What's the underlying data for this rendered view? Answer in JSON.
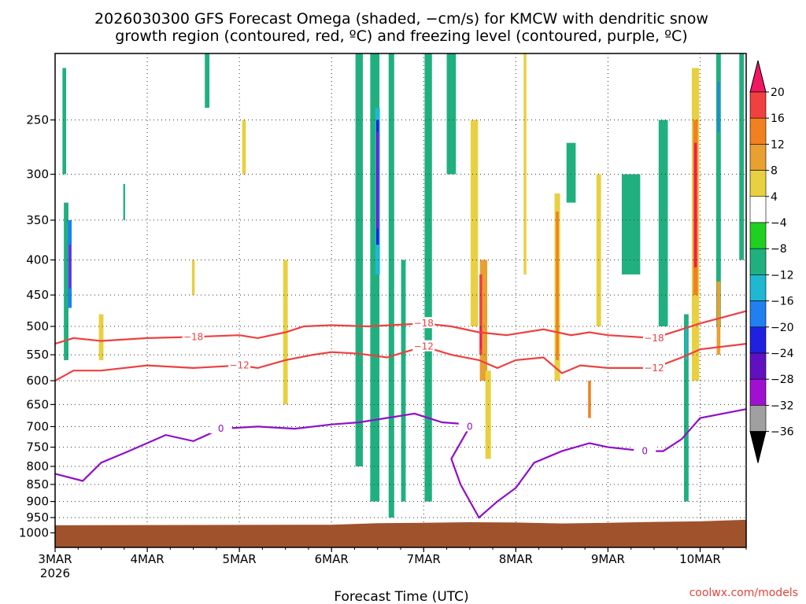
{
  "chart_data": {
    "type": "heatmap",
    "title_line1": "2026030300 GFS Forecast Omega (shaded, −cm/s) for KMCW with dendritic snow",
    "title_line2": "growth region (contoured, red, ºC) and freezing level (contoured, purple, ºC)",
    "xlabel": "Forecast Time (UTC)",
    "ylabel": "",
    "credit": "coolwx.com/models",
    "x_start_day": 3,
    "x_end_day": 10.5,
    "x_ticks": [
      {
        "day": 3,
        "label": "3MAR",
        "sub": "2026"
      },
      {
        "day": 4,
        "label": "4MAR"
      },
      {
        "day": 5,
        "label": "5MAR"
      },
      {
        "day": 6,
        "label": "6MAR"
      },
      {
        "day": 7,
        "label": "7MAR"
      },
      {
        "day": 8,
        "label": "8MAR"
      },
      {
        "day": 9,
        "label": "9MAR"
      },
      {
        "day": 10,
        "label": "10MAR"
      }
    ],
    "y_scale": "log-pressure",
    "y_range_hPa": [
      1050,
      200
    ],
    "y_ticks": [
      250,
      300,
      350,
      400,
      450,
      500,
      550,
      600,
      650,
      700,
      750,
      800,
      850,
      900,
      950,
      1000
    ],
    "grid": true,
    "surface_hPa": [
      [
        3,
        975
      ],
      [
        6,
        973
      ],
      [
        6.5,
        968
      ],
      [
        7,
        967
      ],
      [
        7.5,
        965
      ],
      [
        8,
        966
      ],
      [
        8.5,
        969
      ],
      [
        9,
        967
      ],
      [
        9.5,
        964
      ],
      [
        10,
        962
      ],
      [
        10.5,
        957
      ]
    ],
    "colorbar": {
      "labels": [
        "20",
        "16",
        "12",
        "8",
        "4",
        "−4",
        "−8",
        "−12",
        "−16",
        "−20",
        "−24",
        "−28",
        "−32",
        "−36"
      ],
      "colors": [
        "#f01860",
        "#f04040",
        "#f08020",
        "#e8a030",
        "#e8d040",
        "#ffffff",
        "#20d020",
        "#20b080",
        "#20b8d0",
        "#2080f0",
        "#2020e0",
        "#6010c0",
        "#a010d0",
        "#a0a0a0",
        "#000000"
      ]
    },
    "omega_patches": [
      {
        "x": 3.12,
        "y0": 330,
        "y1": 560,
        "w": 0.05,
        "value": -8
      },
      {
        "x": 3.16,
        "y0": 350,
        "y1": 470,
        "w": 0.04,
        "value": -16
      },
      {
        "x": 3.16,
        "y0": 380,
        "y1": 440,
        "w": 0.02,
        "value": -28
      },
      {
        "x": 3.1,
        "y0": 210,
        "y1": 300,
        "w": 0.04,
        "value": -8
      },
      {
        "x": 3.5,
        "y0": 480,
        "y1": 560,
        "w": 0.05,
        "value": 5
      },
      {
        "x": 3.75,
        "y0": 310,
        "y1": 350,
        "w": 0.02,
        "value": -8
      },
      {
        "x": 4.5,
        "y0": 400,
        "y1": 450,
        "w": 0.03,
        "value": 5
      },
      {
        "x": 4.65,
        "y0": 200,
        "y1": 240,
        "w": 0.05,
        "value": -8
      },
      {
        "x": 5.05,
        "y0": 250,
        "y1": 300,
        "w": 0.04,
        "value": 5
      },
      {
        "x": 5.5,
        "y0": 400,
        "y1": 650,
        "w": 0.05,
        "value": 5
      },
      {
        "x": 6.3,
        "y0": 200,
        "y1": 800,
        "w": 0.08,
        "value": -8
      },
      {
        "x": 6.47,
        "y0": 200,
        "y1": 900,
        "w": 0.1,
        "value": -8
      },
      {
        "x": 6.5,
        "y0": 240,
        "y1": 420,
        "w": 0.05,
        "value": -12
      },
      {
        "x": 6.5,
        "y0": 250,
        "y1": 380,
        "w": 0.03,
        "value": -20
      },
      {
        "x": 6.5,
        "y0": 260,
        "y1": 360,
        "w": 0.02,
        "value": -28
      },
      {
        "x": 6.65,
        "y0": 200,
        "y1": 950,
        "w": 0.06,
        "value": -8
      },
      {
        "x": 6.78,
        "y0": 400,
        "y1": 900,
        "w": 0.05,
        "value": -8
      },
      {
        "x": 7.05,
        "y0": 200,
        "y1": 900,
        "w": 0.08,
        "value": -8
      },
      {
        "x": 7.3,
        "y0": 200,
        "y1": 300,
        "w": 0.1,
        "value": -8
      },
      {
        "x": 7.55,
        "y0": 250,
        "y1": 500,
        "w": 0.08,
        "value": 5
      },
      {
        "x": 7.65,
        "y0": 400,
        "y1": 600,
        "w": 0.08,
        "value": 8
      },
      {
        "x": 7.62,
        "y0": 420,
        "y1": 550,
        "w": 0.03,
        "value": 16
      },
      {
        "x": 7.62,
        "y0": 500,
        "y1": 540,
        "w": 0.015,
        "value": 20
      },
      {
        "x": 7.7,
        "y0": 580,
        "y1": 780,
        "w": 0.06,
        "value": 5
      },
      {
        "x": 8.1,
        "y0": 200,
        "y1": 420,
        "w": 0.03,
        "value": 5
      },
      {
        "x": 8.45,
        "y0": 320,
        "y1": 600,
        "w": 0.06,
        "value": 5
      },
      {
        "x": 8.45,
        "y0": 340,
        "y1": 560,
        "w": 0.03,
        "value": 12
      },
      {
        "x": 8.6,
        "y0": 270,
        "y1": 330,
        "w": 0.1,
        "value": -8
      },
      {
        "x": 8.8,
        "y0": 600,
        "y1": 680,
        "w": 0.03,
        "value": 12
      },
      {
        "x": 8.9,
        "y0": 300,
        "y1": 500,
        "w": 0.05,
        "value": 5
      },
      {
        "x": 9.25,
        "y0": 300,
        "y1": 420,
        "w": 0.2,
        "value": -8
      },
      {
        "x": 9.6,
        "y0": 250,
        "y1": 500,
        "w": 0.1,
        "value": -8
      },
      {
        "x": 9.95,
        "y0": 210,
        "y1": 600,
        "w": 0.08,
        "value": 5
      },
      {
        "x": 9.95,
        "y0": 250,
        "y1": 450,
        "w": 0.05,
        "value": 12
      },
      {
        "x": 9.95,
        "y0": 270,
        "y1": 410,
        "w": 0.03,
        "value": 20
      },
      {
        "x": 9.85,
        "y0": 480,
        "y1": 900,
        "w": 0.05,
        "value": -8
      },
      {
        "x": 9.85,
        "y0": 500,
        "y1": 560,
        "w": 0.02,
        "value": -12
      },
      {
        "x": 10.2,
        "y0": 200,
        "y1": 500,
        "w": 0.05,
        "value": -8
      },
      {
        "x": 10.2,
        "y0": 220,
        "y1": 260,
        "w": 0.02,
        "value": -16
      },
      {
        "x": 10.2,
        "y0": 430,
        "y1": 550,
        "w": 0.04,
        "value": 8
      },
      {
        "x": 10.45,
        "y0": 200,
        "y1": 400,
        "w": 0.05,
        "value": -8
      }
    ],
    "contours": [
      {
        "level": -18,
        "label": "−18",
        "color": "#ee4040",
        "points": [
          [
            3,
            530
          ],
          [
            3.2,
            520
          ],
          [
            3.5,
            525
          ],
          [
            4,
            520
          ],
          [
            4.5,
            518
          ],
          [
            5,
            515
          ],
          [
            5.2,
            520
          ],
          [
            5.5,
            510
          ],
          [
            5.7,
            500
          ],
          [
            6,
            498
          ],
          [
            6.4,
            500
          ],
          [
            7,
            495
          ],
          [
            7.3,
            500
          ],
          [
            7.6,
            510
          ],
          [
            7.9,
            515
          ],
          [
            8.3,
            505
          ],
          [
            8.6,
            515
          ],
          [
            8.8,
            510
          ],
          [
            9,
            515
          ],
          [
            9.5,
            520
          ],
          [
            9.8,
            505
          ],
          [
            10,
            495
          ],
          [
            10.5,
            475
          ]
        ]
      },
      {
        "level": -12,
        "label": "−12",
        "color": "#ee4040",
        "points": [
          [
            3,
            600
          ],
          [
            3.2,
            580
          ],
          [
            3.5,
            580
          ],
          [
            4,
            570
          ],
          [
            4.5,
            575
          ],
          [
            5,
            570
          ],
          [
            5.2,
            575
          ],
          [
            5.5,
            560
          ],
          [
            5.8,
            550
          ],
          [
            6,
            545
          ],
          [
            6.3,
            548
          ],
          [
            6.6,
            555
          ],
          [
            7,
            535
          ],
          [
            7.3,
            550
          ],
          [
            7.6,
            560
          ],
          [
            7.8,
            575
          ],
          [
            8,
            560
          ],
          [
            8.3,
            555
          ],
          [
            8.5,
            585
          ],
          [
            8.7,
            570
          ],
          [
            9,
            575
          ],
          [
            9.5,
            575
          ],
          [
            9.8,
            555
          ],
          [
            10,
            540
          ],
          [
            10.5,
            530
          ]
        ]
      },
      {
        "level": 0,
        "label": "0",
        "color": "#9010c8",
        "points": [
          [
            3,
            820
          ],
          [
            3.3,
            840
          ],
          [
            3.5,
            790
          ],
          [
            3.8,
            760
          ],
          [
            4.2,
            720
          ],
          [
            4.5,
            735
          ],
          [
            4.8,
            705
          ],
          [
            5.2,
            700
          ],
          [
            5.6,
            705
          ],
          [
            6,
            695
          ],
          [
            6.3,
            690
          ],
          [
            6.6,
            680
          ],
          [
            6.9,
            670
          ],
          [
            7.2,
            690
          ],
          [
            7.5,
            695
          ],
          [
            7.5,
            700
          ],
          [
            7.3,
            780
          ],
          [
            7.4,
            850
          ],
          [
            7.6,
            950
          ],
          [
            7.8,
            900
          ],
          [
            8,
            860
          ],
          [
            8.2,
            790
          ],
          [
            8.5,
            760
          ],
          [
            8.8,
            740
          ],
          [
            9,
            750
          ],
          [
            9.4,
            760
          ],
          [
            9.6,
            760
          ],
          [
            9.8,
            730
          ],
          [
            10,
            680
          ],
          [
            10.5,
            660
          ]
        ]
      }
    ]
  }
}
